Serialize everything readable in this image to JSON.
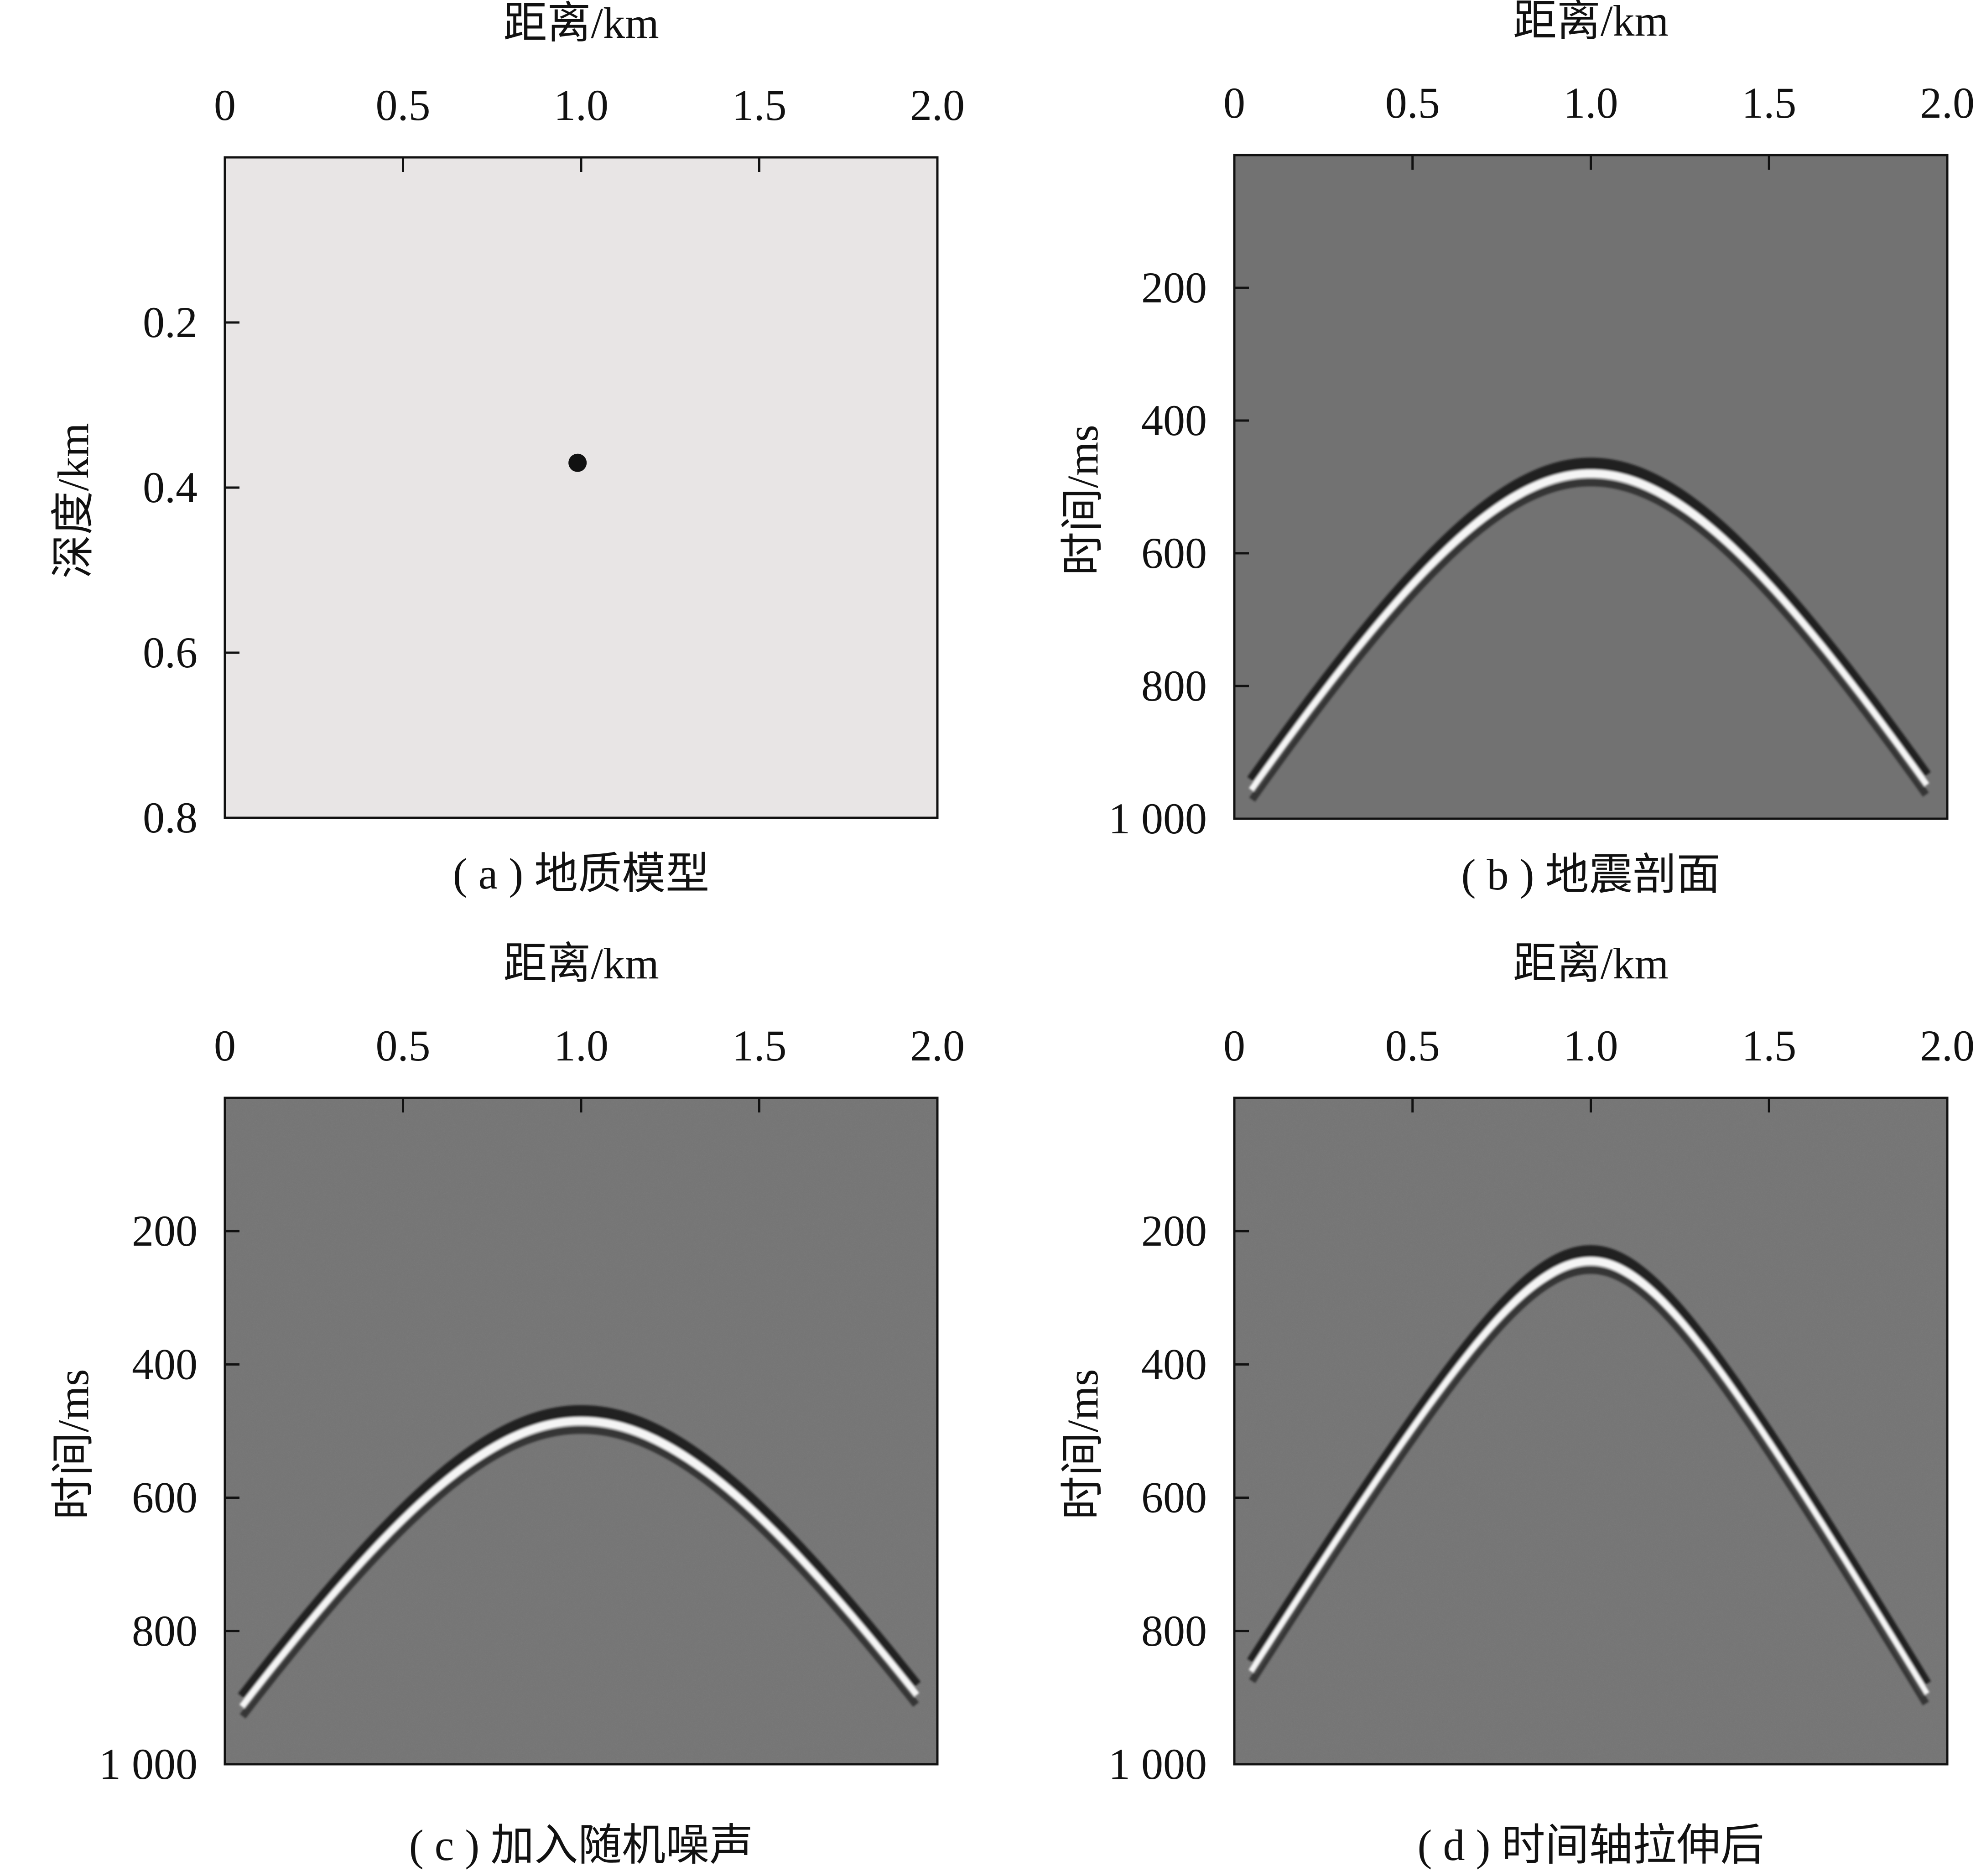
{
  "figure": {
    "panels": [
      {
        "id": "a",
        "caption": "( a ) 地质模型",
        "xlabel": "距离/km",
        "ylabel": "深度/km",
        "xticks": [
          "0",
          "0.5",
          "1.0",
          "1.5",
          "2.0"
        ],
        "yticks": [
          "0.2",
          "0.4",
          "0.6",
          "0.8"
        ],
        "background": "#e8e5e5"
      },
      {
        "id": "b",
        "caption": "( b ) 地震剖面",
        "xlabel": "距离/km",
        "ylabel": "时间/ms",
        "xticks": [
          "0",
          "0.5",
          "1.0",
          "1.5",
          "2.0"
        ],
        "yticks": [
          "200",
          "400",
          "600",
          "800",
          "1 000"
        ],
        "background": "#727272"
      },
      {
        "id": "c",
        "caption": "( c ) 加入随机噪声",
        "xlabel": "距离/km",
        "ylabel": "时间/ms",
        "xticks": [
          "0",
          "0.5",
          "1.0",
          "1.5",
          "2.0"
        ],
        "yticks": [
          "200",
          "400",
          "600",
          "800",
          "1 000"
        ],
        "background": "#737373"
      },
      {
        "id": "d",
        "caption": "( d ) 时间轴拉伸后",
        "xlabel": "距离/km",
        "ylabel": "时间/ms",
        "xticks": [
          "0",
          "0.5",
          "1.0",
          "1.5",
          "2.0"
        ],
        "yticks": [
          "200",
          "400",
          "600",
          "800",
          "1 000"
        ],
        "background": "#737373"
      }
    ]
  },
  "chart_data": [
    {
      "type": "scatter",
      "panel": "a",
      "x_axis": {
        "label": "距离/km",
        "range": [
          0,
          2.0
        ],
        "ticks": [
          0,
          0.5,
          1.0,
          1.5,
          2.0
        ],
        "position": "top"
      },
      "y_axis": {
        "label": "深度/km",
        "range": [
          0,
          0.8
        ],
        "ticks": [
          0.2,
          0.4,
          0.6,
          0.8
        ],
        "inverted": true
      },
      "points": [
        {
          "x": 0.99,
          "y": 0.37
        }
      ],
      "grid": false,
      "legend": "none"
    },
    {
      "type": "heatmap",
      "panel": "b",
      "x_axis": {
        "label": "距离/km",
        "range": [
          0,
          2.0
        ],
        "ticks": [
          0,
          0.5,
          1.0,
          1.5,
          2.0
        ],
        "position": "top"
      },
      "y_axis": {
        "label": "时间/ms",
        "range": [
          0,
          1000
        ],
        "ticks": [
          200,
          400,
          600,
          800,
          1000
        ],
        "inverted": true
      },
      "event": {
        "type": "diffraction-hyperbola",
        "apex_x_km": 1.0,
        "apex_t_ms": 480,
        "t_at_x_0_1_ms": 920,
        "t_at_x_1_9_ms": 920
      },
      "noise": false,
      "grid": false,
      "legend": "none"
    },
    {
      "type": "heatmap",
      "panel": "c",
      "x_axis": {
        "label": "距离/km",
        "range": [
          0,
          2.0
        ],
        "ticks": [
          0,
          0.5,
          1.0,
          1.5,
          2.0
        ],
        "position": "top"
      },
      "y_axis": {
        "label": "时间/ms",
        "range": [
          0,
          1000
        ],
        "ticks": [
          200,
          400,
          600,
          800,
          1000
        ],
        "inverted": true
      },
      "event": {
        "type": "diffraction-hyperbola",
        "apex_x_km": 1.0,
        "apex_t_ms": 485,
        "t_at_x_0_1_ms": 880,
        "t_at_x_1_9_ms": 870
      },
      "noise": true,
      "grid": false,
      "legend": "none"
    },
    {
      "type": "heatmap",
      "panel": "d",
      "x_axis": {
        "label": "距离/km",
        "range": [
          0,
          2.0
        ],
        "ticks": [
          0,
          0.5,
          1.0,
          1.5,
          2.0
        ],
        "position": "top"
      },
      "y_axis": {
        "label": "时间/ms",
        "range": [
          0,
          1000
        ],
        "ticks": [
          200,
          400,
          600,
          800,
          1000
        ],
        "inverted": true
      },
      "event": {
        "type": "diffraction-hyperbola",
        "apex_x_km": 1.0,
        "apex_t_ms": 245,
        "t_at_x_0_1_ms": 820,
        "t_at_x_1_9_ms": 860
      },
      "noise": true,
      "grid": false,
      "legend": "none"
    }
  ]
}
